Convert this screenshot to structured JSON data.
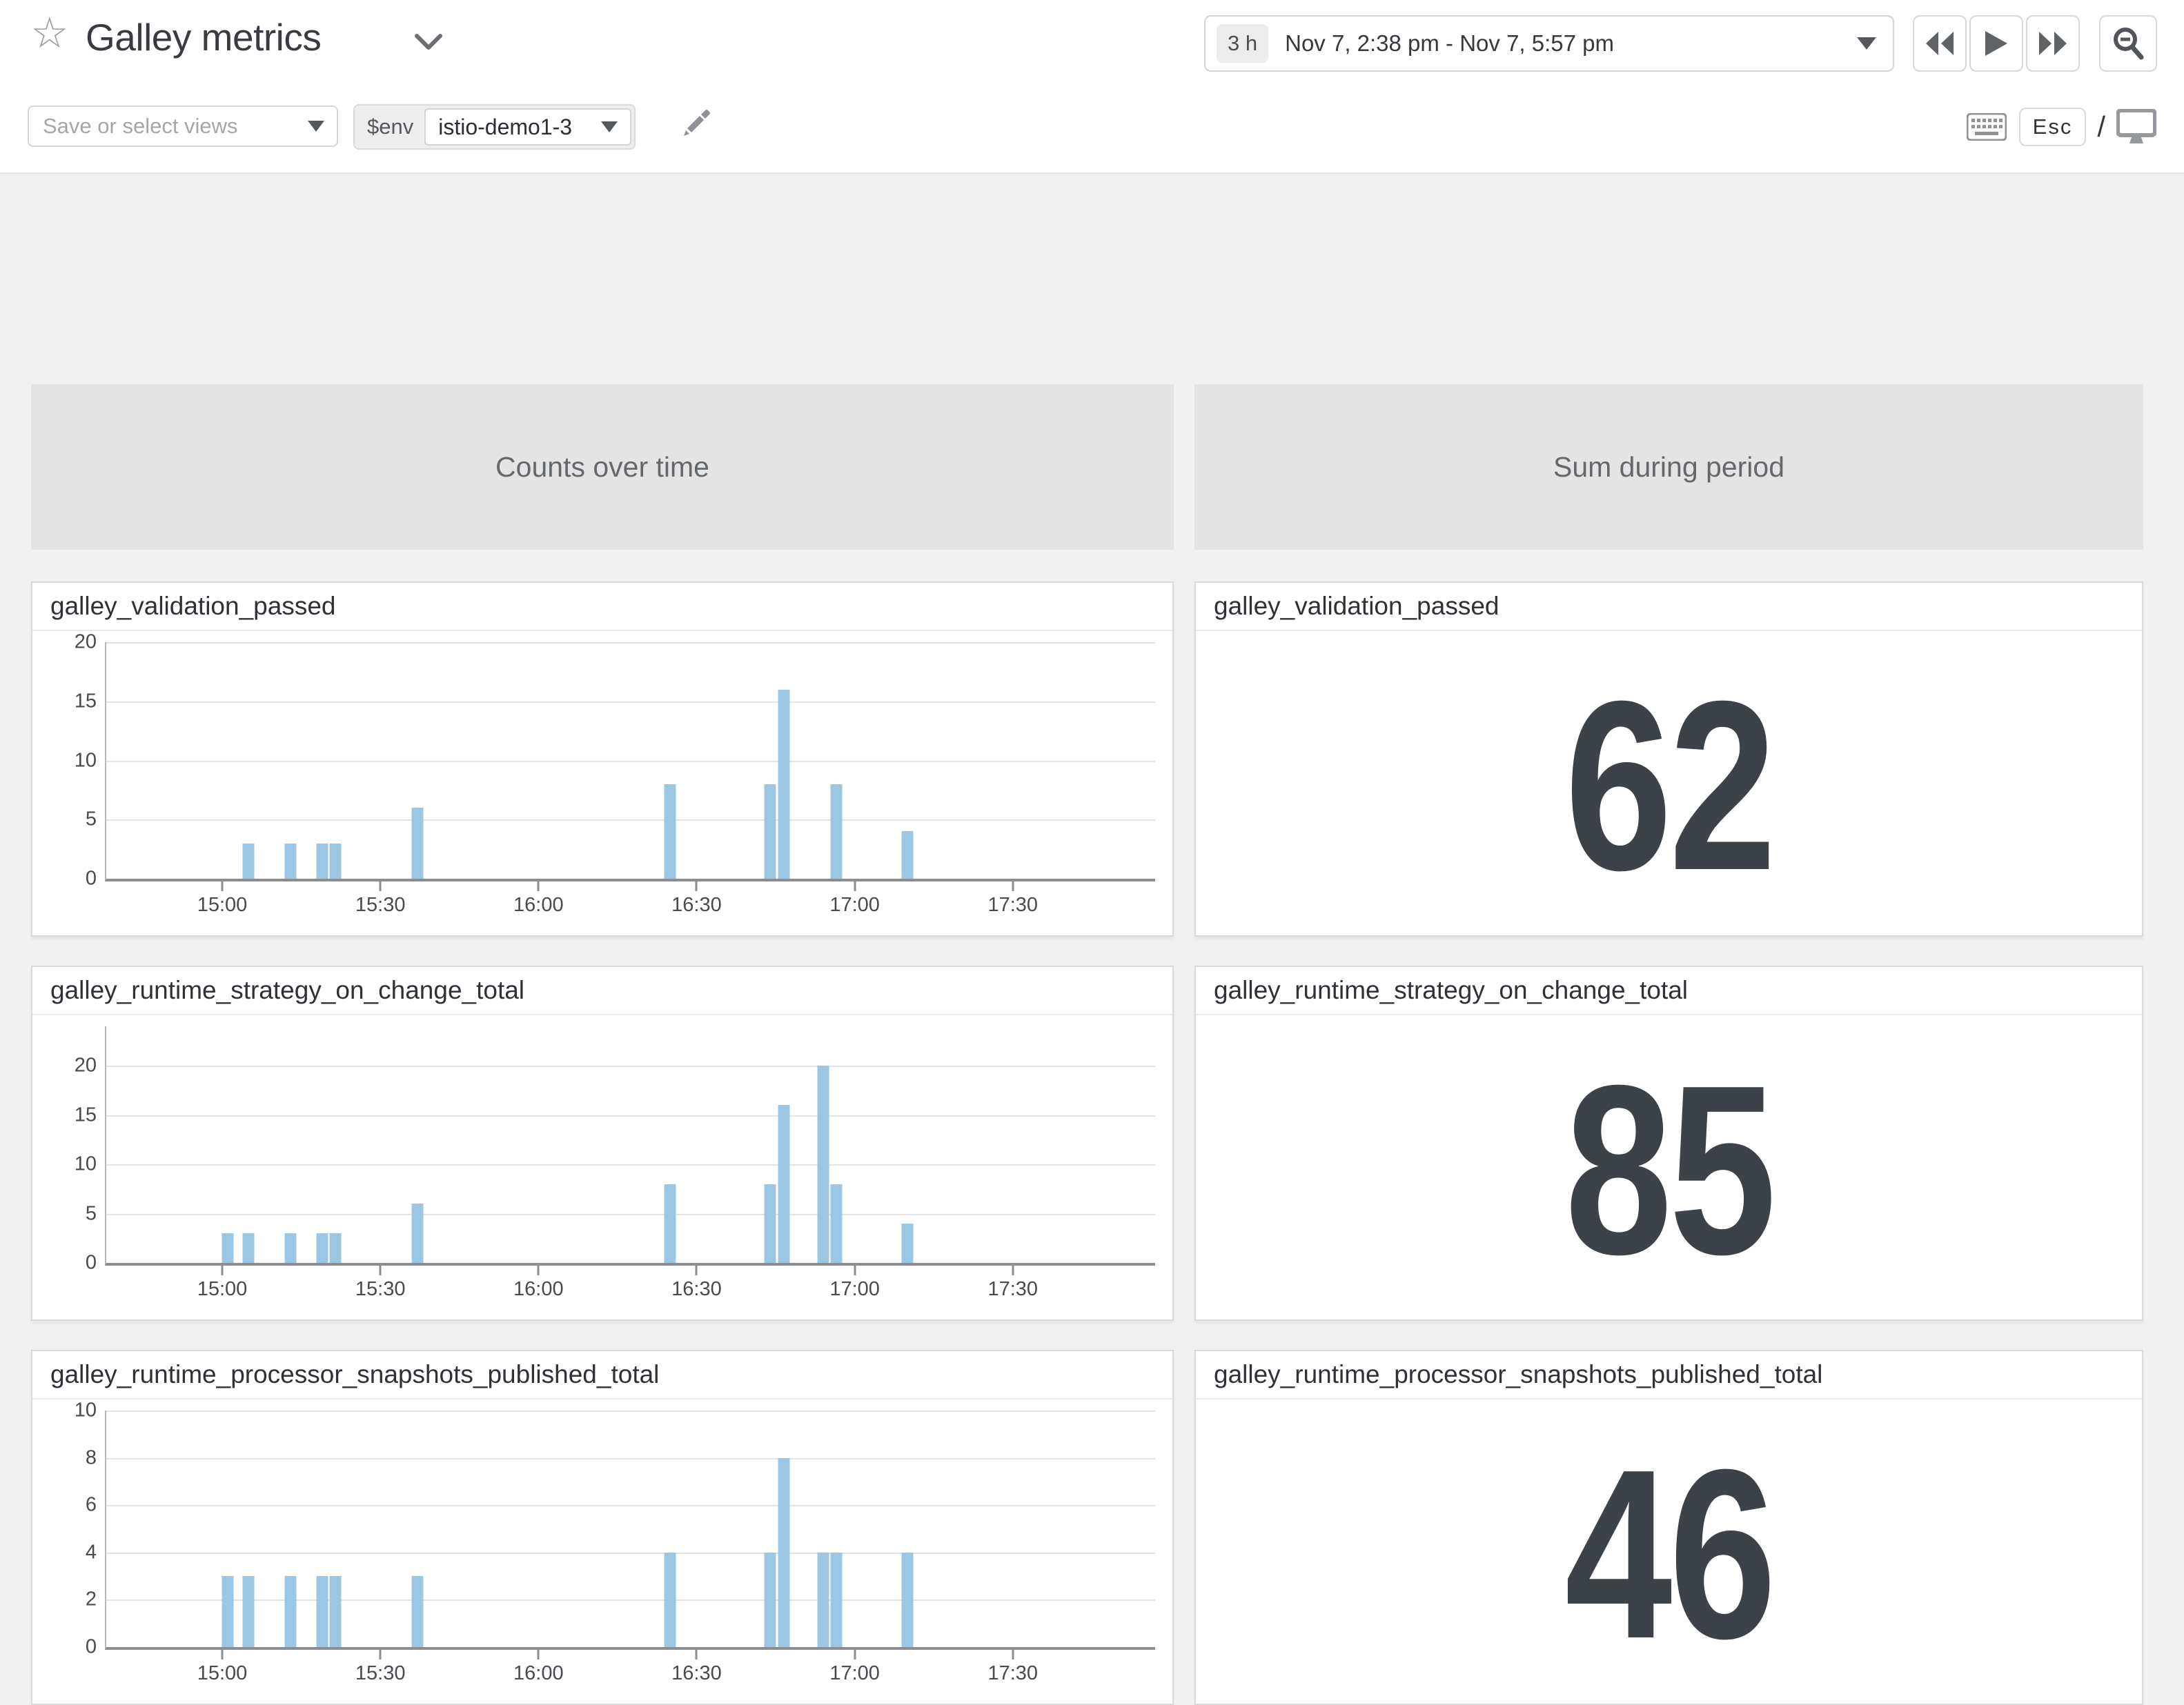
{
  "header": {
    "title": "Galley metrics",
    "time_picker": {
      "duration": "3 h",
      "range": "Nov 7, 2:38 pm - Nov 7, 5:57 pm"
    },
    "views_placeholder": "Save or select views",
    "env": {
      "name": "$env",
      "value": "istio-demo1-3"
    },
    "esc_label": "Esc",
    "slash": "/"
  },
  "columns": {
    "left": "Counts over time",
    "right": "Sum during period"
  },
  "rows": [
    {
      "metric": "galley_validation_passed",
      "sum": "62"
    },
    {
      "metric": "galley_runtime_strategy_on_change_total",
      "sum": "85"
    },
    {
      "metric": "galley_runtime_processor_snapshots_published_total",
      "sum": "46"
    }
  ],
  "colors": {
    "bar": "#9bc7e4",
    "big_number": "#3d4249",
    "header_box": "#e4e4e5",
    "page_background": "#f1f1f2",
    "axis": "#8d8d8f",
    "gridline": "#e3e3e4"
  },
  "chart_data": [
    {
      "type": "bar",
      "title": "galley_validation_passed",
      "x_window": {
        "start": "14:38",
        "end": "17:57",
        "total_minutes": 199
      },
      "x_ticks": [
        {
          "m": 22,
          "label": "15:00"
        },
        {
          "m": 52,
          "label": "15:30"
        },
        {
          "m": 82,
          "label": "16:00"
        },
        {
          "m": 112,
          "label": "16:30"
        },
        {
          "m": 142,
          "label": "17:00"
        },
        {
          "m": 172,
          "label": "17:30"
        }
      ],
      "y_ticks": [
        0,
        5,
        10,
        15,
        20
      ],
      "ylim": [
        0,
        20
      ],
      "points": [
        {
          "m": 27,
          "t": "15:05",
          "v": 3
        },
        {
          "m": 35,
          "t": "15:13",
          "v": 3
        },
        {
          "m": 41,
          "t": "15:19",
          "v": 3
        },
        {
          "m": 43.5,
          "t": "15:21",
          "v": 3
        },
        {
          "m": 59,
          "t": "15:37",
          "v": 6
        },
        {
          "m": 107,
          "t": "16:25",
          "v": 8
        },
        {
          "m": 126,
          "t": "16:44",
          "v": 8
        },
        {
          "m": 128.5,
          "t": "16:46",
          "v": 16
        },
        {
          "m": 138.5,
          "t": "16:56",
          "v": 8
        },
        {
          "m": 152,
          "t": "17:10",
          "v": 4
        }
      ]
    },
    {
      "type": "bar",
      "title": "galley_runtime_strategy_on_change_total",
      "x_window": {
        "start": "14:38",
        "end": "17:57",
        "total_minutes": 199
      },
      "x_ticks": [
        {
          "m": 22,
          "label": "15:00"
        },
        {
          "m": 52,
          "label": "15:30"
        },
        {
          "m": 82,
          "label": "16:00"
        },
        {
          "m": 112,
          "label": "16:30"
        },
        {
          "m": 142,
          "label": "17:00"
        },
        {
          "m": 172,
          "label": "17:30"
        }
      ],
      "y_ticks": [
        0,
        5,
        10,
        15,
        20
      ],
      "ylim": [
        0,
        24
      ],
      "points": [
        {
          "m": 23,
          "t": "15:01",
          "v": 3
        },
        {
          "m": 27,
          "t": "15:05",
          "v": 3
        },
        {
          "m": 35,
          "t": "15:13",
          "v": 3
        },
        {
          "m": 41,
          "t": "15:19",
          "v": 3
        },
        {
          "m": 43.5,
          "t": "15:21",
          "v": 3
        },
        {
          "m": 59,
          "t": "15:37",
          "v": 6
        },
        {
          "m": 107,
          "t": "16:25",
          "v": 8
        },
        {
          "m": 126,
          "t": "16:44",
          "v": 8
        },
        {
          "m": 128.5,
          "t": "16:46",
          "v": 16
        },
        {
          "m": 136,
          "t": "16:54",
          "v": 20
        },
        {
          "m": 138.5,
          "t": "16:56",
          "v": 8
        },
        {
          "m": 152,
          "t": "17:10",
          "v": 4
        }
      ]
    },
    {
      "type": "bar",
      "title": "galley_runtime_processor_snapshots_published_total",
      "x_window": {
        "start": "14:38",
        "end": "17:57",
        "total_minutes": 199
      },
      "x_ticks": [
        {
          "m": 22,
          "label": "15:00"
        },
        {
          "m": 52,
          "label": "15:30"
        },
        {
          "m": 82,
          "label": "16:00"
        },
        {
          "m": 112,
          "label": "16:30"
        },
        {
          "m": 142,
          "label": "17:00"
        },
        {
          "m": 172,
          "label": "17:30"
        }
      ],
      "y_ticks": [
        0,
        2,
        4,
        6,
        8,
        10
      ],
      "ylim": [
        0,
        10
      ],
      "points": [
        {
          "m": 23,
          "t": "15:01",
          "v": 3
        },
        {
          "m": 27,
          "t": "15:05",
          "v": 3
        },
        {
          "m": 35,
          "t": "15:13",
          "v": 3
        },
        {
          "m": 41,
          "t": "15:19",
          "v": 3
        },
        {
          "m": 43.5,
          "t": "15:21",
          "v": 3
        },
        {
          "m": 59,
          "t": "15:37",
          "v": 3
        },
        {
          "m": 107,
          "t": "16:25",
          "v": 4
        },
        {
          "m": 126,
          "t": "16:44",
          "v": 4
        },
        {
          "m": 128.5,
          "t": "16:46",
          "v": 8
        },
        {
          "m": 136,
          "t": "16:54",
          "v": 4
        },
        {
          "m": 138.5,
          "t": "16:56",
          "v": 4
        },
        {
          "m": 152,
          "t": "17:10",
          "v": 4
        }
      ]
    }
  ]
}
